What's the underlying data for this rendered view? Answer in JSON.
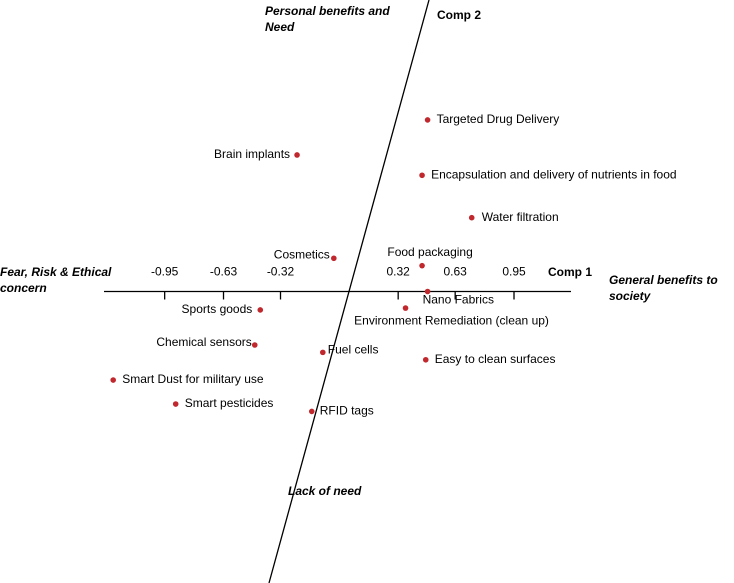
{
  "chart_data": {
    "type": "scatter",
    "x_axis_label": "Comp 1",
    "y_axis_label": "Comp 2",
    "annotations": [
      {
        "name": "top",
        "text": [
          "Personal benefits and",
          "Need"
        ]
      },
      {
        "name": "right",
        "text": [
          "General benefits to",
          "society"
        ]
      },
      {
        "name": "left",
        "text": [
          "Fear, Risk & Ethical",
          "concern"
        ]
      },
      {
        "name": "bottom",
        "text": [
          "Lack of  need"
        ]
      }
    ],
    "xlim": [
      -1.28,
      1.26
    ],
    "ylim": [
      -1.58,
      1.58
    ],
    "xticks": [
      -0.95,
      -0.63,
      -0.32,
      0.32,
      0.63,
      0.95
    ],
    "color": "#c0282d",
    "series": [
      {
        "labels": [
          "Targeted Drug Delivery",
          "Brain implants",
          "Encapsulation and delivery of nutrients in food",
          "Water filtration",
          "Cosmetics",
          "Food packaging",
          "Nano Fabrics",
          "Environment Remediation (clean up)",
          "Sports goods",
          "Chemical sensors",
          "Fuel cells",
          "Easy to clean surfaces",
          "Smart Dust for military use",
          "Smart pesticides",
          "RFID tags"
        ],
        "x": [
          0.48,
          -0.23,
          0.45,
          0.72,
          -0.03,
          0.45,
          0.48,
          0.36,
          -0.43,
          -0.46,
          -0.09,
          0.47,
          -1.23,
          -0.89,
          -0.15
        ],
        "values": [
          0.93,
          0.74,
          0.63,
          0.4,
          0.18,
          0.14,
          0.0,
          -0.09,
          -0.1,
          -0.29,
          -0.33,
          -0.37,
          -0.48,
          -0.61,
          -0.65
        ]
      }
    ]
  }
}
